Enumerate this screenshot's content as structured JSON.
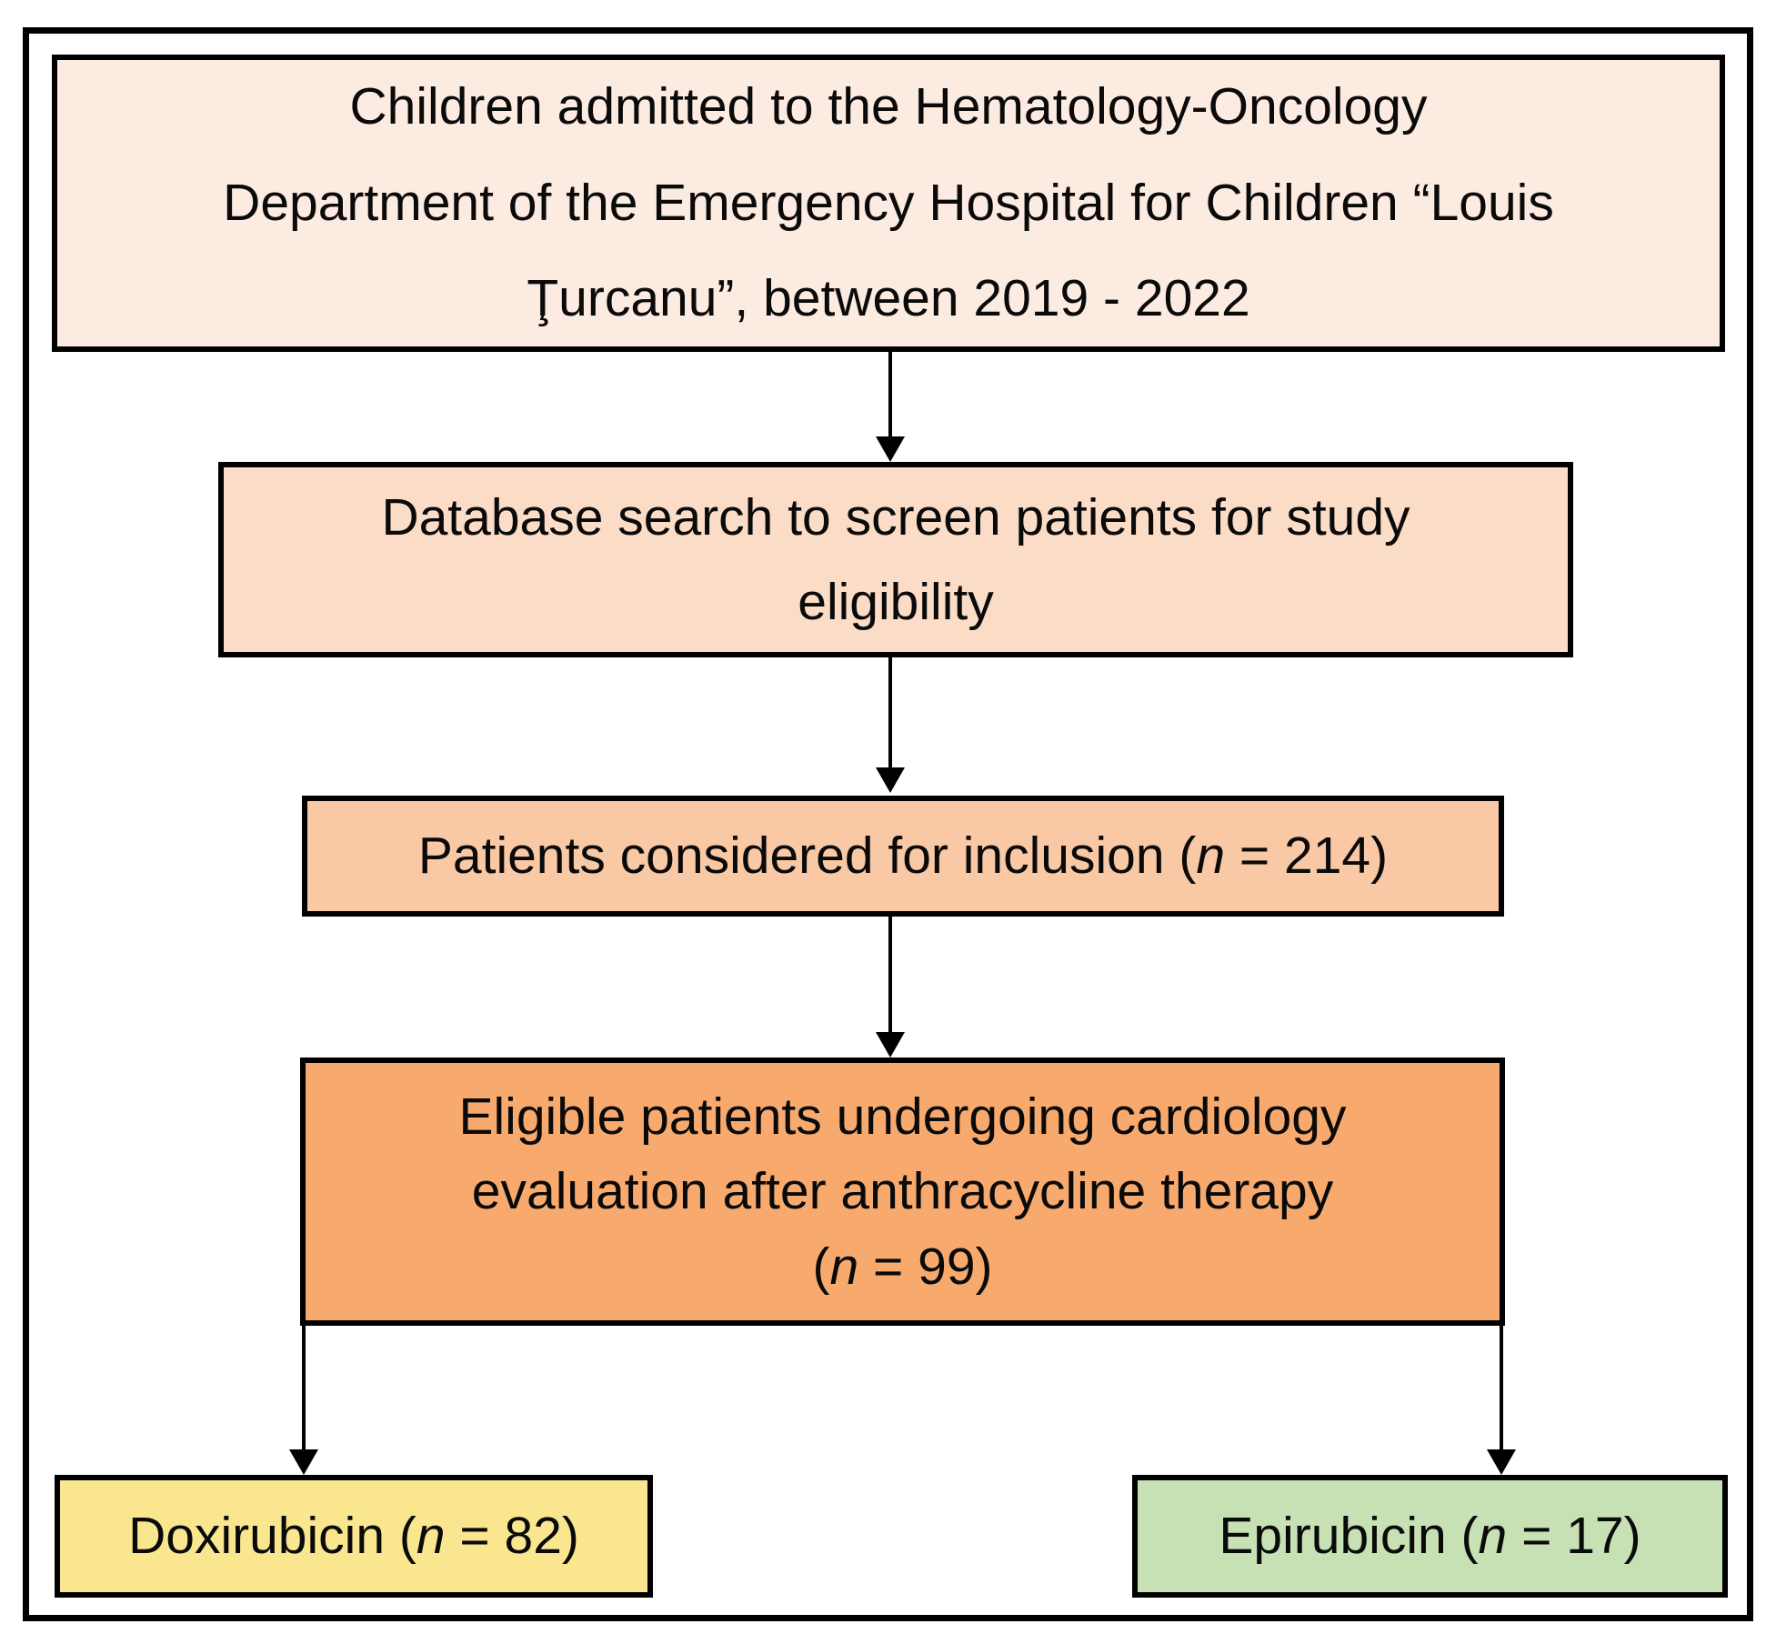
{
  "figure": {
    "type": "flowchart",
    "colors": {
      "admitted": "#fcebe1",
      "database": "#fbdcc6",
      "considered": "#f9c8a4",
      "eligible": "#f8aa6e",
      "doxirubicin": "#fae68f",
      "epirubicin": "#c7e1b5",
      "outline": "#000000"
    },
    "boxes": {
      "admitted": {
        "lines": [
          "Children admitted to the Hematology-Oncology",
          "Department of the Emergency Hospital for Children “Louis",
          "Ţurcanu”, between 2019 - 2022"
        ]
      },
      "database": {
        "lines": [
          "Database search to screen patients for study",
          "eligibility"
        ]
      },
      "considered": {
        "text_before_n": "Patients considered for inclusion (",
        "n_symbol": "n",
        "text_after_n": " = 214)"
      },
      "eligible": {
        "lines": [
          "Eligible patients undergoing cardiology",
          "evaluation after anthracycline therapy"
        ],
        "text_before_n": "(",
        "n_symbol": "n",
        "text_after_n": " = 99)"
      },
      "doxirubicin": {
        "text_before_n": "Doxirubicin (",
        "n_symbol": "n",
        "text_after_n": " = 82)"
      },
      "epirubicin": {
        "text_before_n": "Epirubicin (",
        "n_symbol": "n",
        "text_after_n": " = 17)"
      }
    }
  }
}
